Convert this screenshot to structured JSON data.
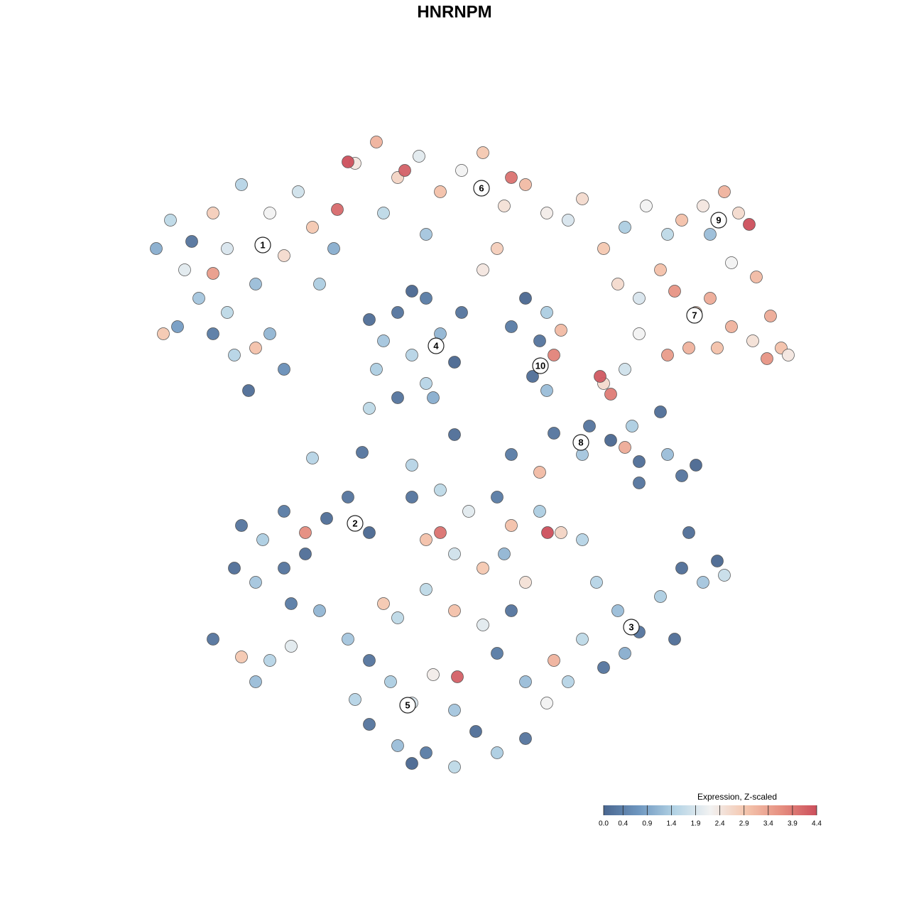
{
  "chart_data": {
    "type": "scatter",
    "title": "HNRNPM",
    "x": [
      2,
      4,
      6,
      8,
      10,
      12,
      14,
      16,
      18,
      20,
      22,
      24,
      10,
      13,
      15,
      18,
      20,
      12,
      5,
      3,
      10,
      16,
      7,
      25,
      27,
      30,
      33,
      36,
      39,
      42,
      45,
      48,
      51,
      54,
      57,
      60,
      62,
      29,
      37,
      27.5,
      34,
      40,
      50,
      48,
      65,
      52,
      68,
      71,
      74,
      76,
      79,
      82,
      84,
      85.5,
      86.5,
      83,
      80,
      67,
      70,
      73,
      75,
      78,
      80,
      83,
      86,
      88.5,
      90,
      91,
      88,
      74,
      77,
      81,
      70,
      68,
      65,
      64.5,
      66,
      32,
      34,
      36,
      38,
      40,
      42,
      44,
      40,
      36,
      33,
      45,
      38,
      41,
      32,
      54,
      57,
      56,
      58,
      59,
      55,
      57,
      52,
      58,
      62,
      66,
      70,
      74,
      76,
      78,
      70,
      68,
      69,
      73,
      63,
      52,
      56,
      14,
      17,
      20,
      23,
      26,
      29,
      32,
      13,
      16,
      20,
      23,
      21,
      25,
      10,
      14,
      18,
      16,
      21,
      38,
      42,
      46,
      50,
      52,
      56,
      59,
      57.1,
      62,
      40,
      42,
      44,
      48,
      51,
      54,
      40,
      44,
      48,
      52,
      36,
      34,
      64,
      67,
      70,
      73,
      76,
      79,
      81,
      82,
      75,
      68,
      65,
      62,
      58,
      60,
      57,
      77,
      29,
      32,
      35,
      38,
      41,
      44.4,
      44,
      47,
      50,
      54,
      40,
      44,
      36,
      32,
      30,
      38,
      50,
      54,
      24,
      31,
      38,
      44
    ],
    "y": [
      75,
      79,
      72,
      68,
      80,
      75,
      84,
      70,
      80,
      74,
      83,
      78,
      63,
      60,
      55,
      63,
      58,
      66,
      64,
      63,
      71.5,
      61,
      76,
      70,
      75,
      87,
      90,
      85,
      88,
      83,
      86,
      88.5,
      81,
      84,
      80,
      79,
      82,
      87.2,
      86,
      80.5,
      80,
      77,
      75,
      72,
      75,
      85,
      78,
      81,
      77,
      79,
      81,
      83,
      80,
      78.4,
      71,
      73,
      77,
      70,
      68,
      72,
      69,
      66,
      68,
      64,
      62,
      65.5,
      61,
      60,
      59.5,
      60,
      61,
      61,
      63,
      58,
      56,
      57,
      54.5,
      65,
      62,
      66,
      60,
      68,
      63,
      59,
      56,
      54,
      58,
      66,
      69,
      54,
      52.5,
      68,
      66,
      62,
      60,
      63.5,
      57,
      55,
      64,
      49,
      46,
      48,
      45,
      46,
      43,
      44.5,
      42,
      47,
      50,
      52,
      50,
      46,
      43.5,
      36,
      34,
      38,
      35,
      37,
      40,
      35,
      30,
      28,
      30,
      32,
      25,
      24,
      20,
      17.5,
      17,
      14,
      19,
      40,
      41,
      38,
      40,
      36,
      38,
      35,
      35,
      34,
      34,
      35,
      32,
      30,
      32,
      28,
      27,
      24,
      22,
      24,
      23,
      25,
      28,
      24,
      21,
      26,
      30,
      28,
      31,
      29,
      20,
      18,
      16,
      20,
      17,
      14,
      11,
      35,
      20,
      17,
      14,
      11,
      15,
      14.7,
      10,
      7,
      4,
      6,
      4,
      2,
      5,
      8,
      11.5,
      2.5,
      18,
      14,
      45.5,
      46.3,
      44.5,
      48.8
    ],
    "values": [
      1.0,
      1.6,
      2.0,
      1.3,
      2.8,
      1.9,
      1.5,
      1.2,
      2.2,
      2.6,
      1.8,
      2.9,
      0.3,
      1.5,
      0.1,
      1.1,
      0.6,
      1.6,
      0.8,
      2.9,
      3.5,
      3.0,
      0.2,
      1.4,
      1.0,
      2.4,
      3.2,
      2.7,
      2.0,
      3.0,
      2.2,
      2.9,
      2.5,
      3.1,
      2.3,
      1.9,
      2.6,
      4.4,
      4.2,
      4.1,
      1.6,
      1.3,
      2.8,
      2.4,
      2.9,
      4.0,
      1.4,
      2.2,
      1.6,
      3.0,
      2.4,
      3.2,
      2.6,
      4.4,
      3.1,
      2.2,
      1.2,
      2.6,
      1.9,
      3.0,
      3.6,
      2.8,
      3.3,
      3.2,
      2.5,
      3.3,
      3.0,
      2.4,
      3.6,
      3.5,
      3.2,
      3.0,
      2.2,
      1.8,
      2.6,
      4.3,
      3.9,
      0.1,
      1.3,
      0.2,
      1.5,
      0.3,
      1.1,
      0.0,
      1.5,
      0.2,
      1.4,
      0.2,
      0.0,
      1.0,
      1.6,
      0.0,
      1.4,
      0.2,
      3.8,
      3.1,
      0.1,
      1.2,
      0.3,
      0.2,
      1.3,
      0.0,
      0.1,
      1.2,
      0.2,
      0.0,
      0.2,
      3.3,
      1.4,
      0.1,
      0.2,
      0.3,
      3.1,
      0.2,
      1.4,
      0.3,
      3.7,
      0.1,
      0.2,
      0.0,
      0.1,
      1.3,
      0.2,
      0.1,
      0.3,
      1.1,
      0.2,
      2.9,
      1.5,
      1.2,
      2.0,
      0.2,
      1.6,
      2.0,
      0.3,
      3.0,
      1.4,
      2.7,
      4.4,
      1.5,
      3.0,
      4.0,
      1.8,
      2.9,
      1.1,
      2.5,
      1.6,
      3.0,
      2.0,
      0.2,
      1.6,
      2.9,
      1.5,
      1.2,
      0.2,
      1.4,
      0.1,
      1.3,
      0.0,
      1.7,
      0.1,
      1.0,
      0.2,
      1.6,
      3.2,
      1.5,
      2.2,
      0.1,
      1.3,
      0.2,
      1.4,
      1.9,
      2.3,
      4.2,
      1.3,
      0.1,
      1.4,
      0.2,
      0.3,
      1.6,
      1.2,
      0.2,
      1.5,
      0.0,
      0.3,
      1.2,
      1.5,
      0.2,
      1.5,
      0.1
    ],
    "xlim": [
      0,
      93
    ],
    "ylim": [
      0,
      92
    ],
    "annotations": [
      {
        "text": "1",
        "x": 17,
        "y": 75.5
      },
      {
        "text": "6",
        "x": 47.8,
        "y": 83.5
      },
      {
        "text": "9",
        "x": 81.2,
        "y": 79
      },
      {
        "text": "7",
        "x": 77.8,
        "y": 65.6
      },
      {
        "text": "4",
        "x": 41.4,
        "y": 61.3
      },
      {
        "text": "10",
        "x": 56.1,
        "y": 58.5
      },
      {
        "text": "8",
        "x": 61.8,
        "y": 47.7
      },
      {
        "text": "2",
        "x": 30,
        "y": 36.3
      },
      {
        "text": "3",
        "x": 68.9,
        "y": 21.7
      },
      {
        "text": "5",
        "x": 37.4,
        "y": 10.7
      }
    ],
    "colorbar": {
      "label": "Expression, Z-scaled",
      "clim": [
        0,
        4.4
      ],
      "colors": [
        "#4a6790",
        "#6f97c0",
        "#b3d3e5",
        "#f2f2f2",
        "#f4c6ae",
        "#e68f80",
        "#cc4f5c"
      ],
      "ticks": [
        {
          "value": 0,
          "label": "0.0"
        },
        0.4,
        0.9,
        1.4,
        1.9,
        2.4,
        2.9,
        3.4,
        3.9,
        4.4
      ]
    }
  }
}
